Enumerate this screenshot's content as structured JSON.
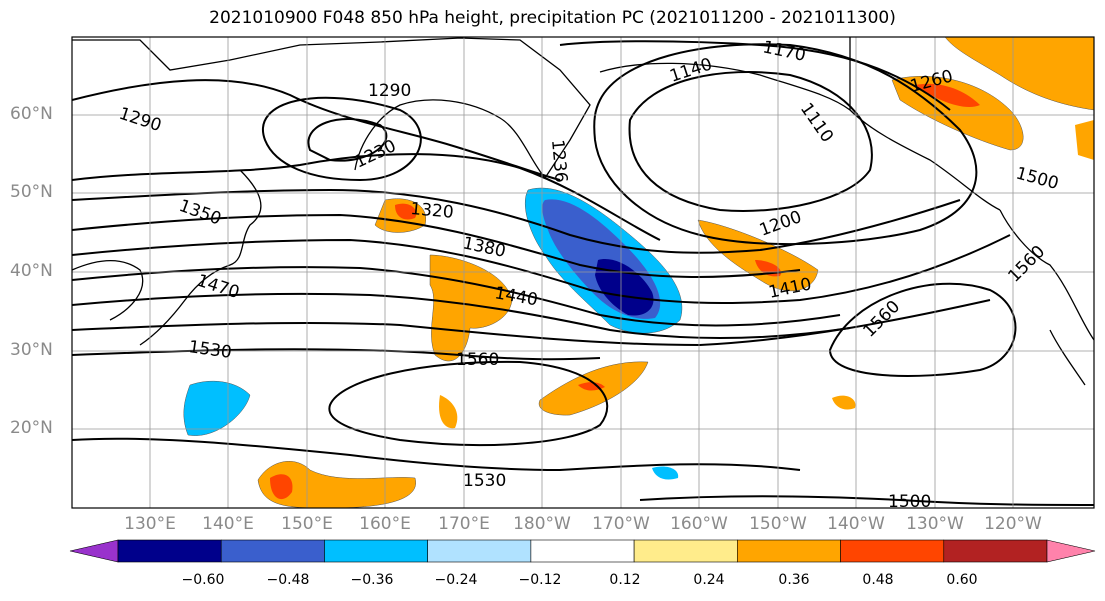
{
  "title": "2021010900 F048 850 hPa height, precipitation PC (2021011200 - 2021011300)",
  "lat_labels": [
    "60°N",
    "50°N",
    "40°N",
    "30°N",
    "20°N"
  ],
  "lon_labels": [
    "130°E",
    "140°E",
    "150°E",
    "160°E",
    "170°E",
    "180°W",
    "170°W",
    "160°W",
    "150°W",
    "140°W",
    "130°W",
    "120°W"
  ],
  "contour_labels": [
    "1290",
    "1290",
    "1230",
    "1236",
    "1140",
    "1170",
    "1110",
    "1260",
    "1500",
    "1350",
    "1320",
    "1380",
    "1440",
    "1470",
    "1200",
    "1410",
    "1560",
    "1560",
    "1530",
    "1560",
    "1530",
    "1500"
  ],
  "colorbar": {
    "ticks": [
      "−0.60",
      "−0.48",
      "−0.36",
      "−0.24",
      "−0.12",
      "0.12",
      "0.24",
      "0.36",
      "0.48",
      "0.60"
    ],
    "colors": [
      "#9932cc",
      "#00008b",
      "#3a5fcd",
      "#00bfff",
      "#b0e2ff",
      "#ffffff",
      "#ffec8b",
      "#ffa500",
      "#ff4500",
      "#b22222",
      "#ff82ab"
    ]
  }
}
